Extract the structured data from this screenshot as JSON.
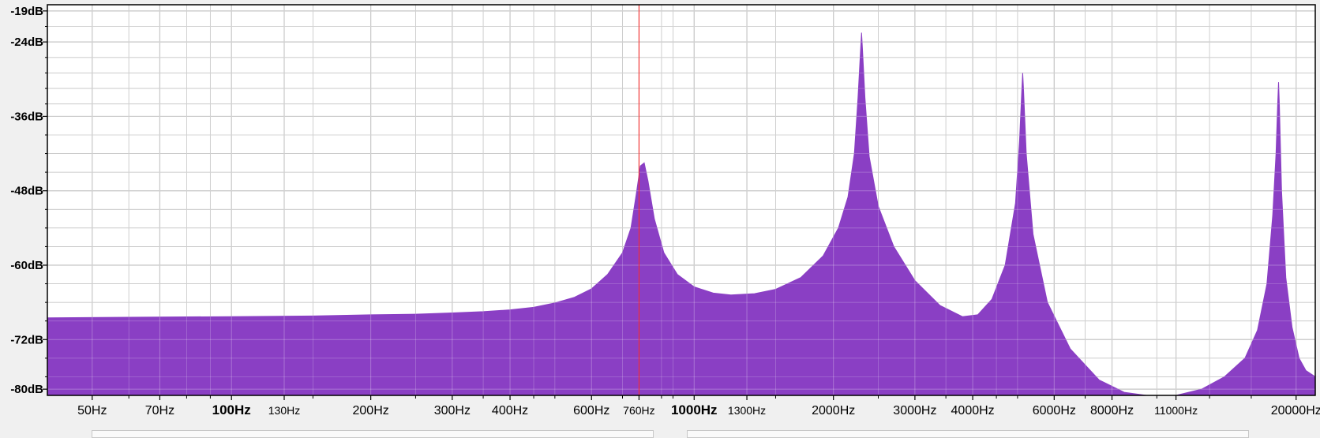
{
  "chart_data": {
    "type": "area",
    "title": "",
    "xlabel": "",
    "ylabel": "",
    "x_scale": "log",
    "xlim": [
      40,
      22000
    ],
    "ylim": [
      -81,
      -18
    ],
    "y_ticks": [
      {
        "value": -19,
        "label": "-19dB"
      },
      {
        "value": -24,
        "label": "-24dB"
      },
      {
        "value": -36,
        "label": "-36dB"
      },
      {
        "value": -48,
        "label": "-48dB"
      },
      {
        "value": -60,
        "label": "-60dB"
      },
      {
        "value": -72,
        "label": "-72dB"
      },
      {
        "value": -80,
        "label": "-80dB"
      }
    ],
    "x_ticks": [
      {
        "value": 50,
        "label": "50Hz"
      },
      {
        "value": 70,
        "label": "70Hz"
      },
      {
        "value": 100,
        "label": "100Hz",
        "bold": true
      },
      {
        "value": 130,
        "label": "130Hz",
        "small": true
      },
      {
        "value": 200,
        "label": "200Hz"
      },
      {
        "value": 300,
        "label": "300Hz"
      },
      {
        "value": 400,
        "label": "400Hz"
      },
      {
        "value": 600,
        "label": "600Hz"
      },
      {
        "value": 760,
        "label": "760Hz",
        "small": true
      },
      {
        "value": 1000,
        "label": "1000Hz",
        "bold": true
      },
      {
        "value": 1300,
        "label": "1300Hz",
        "small": true
      },
      {
        "value": 2000,
        "label": "2000Hz"
      },
      {
        "value": 3000,
        "label": "3000Hz"
      },
      {
        "value": 4000,
        "label": "4000Hz"
      },
      {
        "value": 6000,
        "label": "6000Hz"
      },
      {
        "value": 8000,
        "label": "8000Hz"
      },
      {
        "value": 11000,
        "label": "11000Hz",
        "small": true
      },
      {
        "value": 20000,
        "label": "20000Hz"
      }
    ],
    "y_minor_ticks": [
      -21.5,
      -26.5,
      -29,
      -31.5,
      -34,
      -39,
      -42,
      -45,
      -51,
      -54,
      -57,
      -63,
      -66,
      -69,
      -75,
      -78
    ],
    "x_minor_ticks": [
      60,
      80,
      90,
      150,
      250,
      350,
      450,
      500,
      700,
      850,
      900,
      1500,
      2500,
      3500,
      4500,
      5000,
      7000,
      10000,
      13000,
      16000
    ],
    "cursor_hz": 760,
    "fill_color": "#8a3fc4",
    "grid": true,
    "series": [
      {
        "values": [
          {
            "x": 40,
            "y": -68.5
          },
          {
            "x": 60,
            "y": -68.4
          },
          {
            "x": 100,
            "y": -68.3
          },
          {
            "x": 150,
            "y": -68.2
          },
          {
            "x": 200,
            "y": -68.0
          },
          {
            "x": 250,
            "y": -67.9
          },
          {
            "x": 300,
            "y": -67.7
          },
          {
            "x": 350,
            "y": -67.5
          },
          {
            "x": 400,
            "y": -67.2
          },
          {
            "x": 450,
            "y": -66.8
          },
          {
            "x": 500,
            "y": -66.1
          },
          {
            "x": 550,
            "y": -65.2
          },
          {
            "x": 600,
            "y": -63.8
          },
          {
            "x": 650,
            "y": -61.5
          },
          {
            "x": 700,
            "y": -58.0
          },
          {
            "x": 730,
            "y": -54.0
          },
          {
            "x": 750,
            "y": -48.5
          },
          {
            "x": 765,
            "y": -44.0
          },
          {
            "x": 780,
            "y": -43.5
          },
          {
            "x": 795,
            "y": -46.5
          },
          {
            "x": 820,
            "y": -52.5
          },
          {
            "x": 860,
            "y": -58.0
          },
          {
            "x": 920,
            "y": -61.5
          },
          {
            "x": 1000,
            "y": -63.5
          },
          {
            "x": 1100,
            "y": -64.5
          },
          {
            "x": 1200,
            "y": -64.8
          },
          {
            "x": 1350,
            "y": -64.6
          },
          {
            "x": 1500,
            "y": -63.9
          },
          {
            "x": 1700,
            "y": -62.0
          },
          {
            "x": 1900,
            "y": -58.5
          },
          {
            "x": 2050,
            "y": -54.0
          },
          {
            "x": 2150,
            "y": -49.0
          },
          {
            "x": 2220,
            "y": -42.0
          },
          {
            "x": 2260,
            "y": -33.0
          },
          {
            "x": 2290,
            "y": -25.0
          },
          {
            "x": 2300,
            "y": -22.5
          },
          {
            "x": 2310,
            "y": -25.0
          },
          {
            "x": 2340,
            "y": -33.0
          },
          {
            "x": 2390,
            "y": -42.5
          },
          {
            "x": 2500,
            "y": -50.5
          },
          {
            "x": 2700,
            "y": -57.0
          },
          {
            "x": 3000,
            "y": -62.5
          },
          {
            "x": 3400,
            "y": -66.5
          },
          {
            "x": 3800,
            "y": -68.3
          },
          {
            "x": 4100,
            "y": -68.0
          },
          {
            "x": 4400,
            "y": -65.5
          },
          {
            "x": 4700,
            "y": -60.0
          },
          {
            "x": 4950,
            "y": -50.0
          },
          {
            "x": 5050,
            "y": -40.0
          },
          {
            "x": 5110,
            "y": -31.5
          },
          {
            "x": 5130,
            "y": -29.0
          },
          {
            "x": 5150,
            "y": -31.5
          },
          {
            "x": 5220,
            "y": -42.0
          },
          {
            "x": 5400,
            "y": -55.0
          },
          {
            "x": 5800,
            "y": -66.0
          },
          {
            "x": 6500,
            "y": -73.5
          },
          {
            "x": 7500,
            "y": -78.5
          },
          {
            "x": 8500,
            "y": -80.5
          },
          {
            "x": 9500,
            "y": -81.0
          },
          {
            "x": 11000,
            "y": -81.0
          },
          {
            "x": 12500,
            "y": -80.0
          },
          {
            "x": 14000,
            "y": -78.0
          },
          {
            "x": 15500,
            "y": -75.0
          },
          {
            "x": 16500,
            "y": -70.5
          },
          {
            "x": 17300,
            "y": -63.0
          },
          {
            "x": 17800,
            "y": -52.0
          },
          {
            "x": 18100,
            "y": -42.0
          },
          {
            "x": 18250,
            "y": -34.0
          },
          {
            "x": 18330,
            "y": -30.5
          },
          {
            "x": 18400,
            "y": -34.0
          },
          {
            "x": 18600,
            "y": -48.0
          },
          {
            "x": 19000,
            "y": -62.0
          },
          {
            "x": 19600,
            "y": -70.0
          },
          {
            "x": 20300,
            "y": -75.0
          },
          {
            "x": 21000,
            "y": -77.0
          },
          {
            "x": 22000,
            "y": -78.0
          }
        ]
      }
    ]
  }
}
